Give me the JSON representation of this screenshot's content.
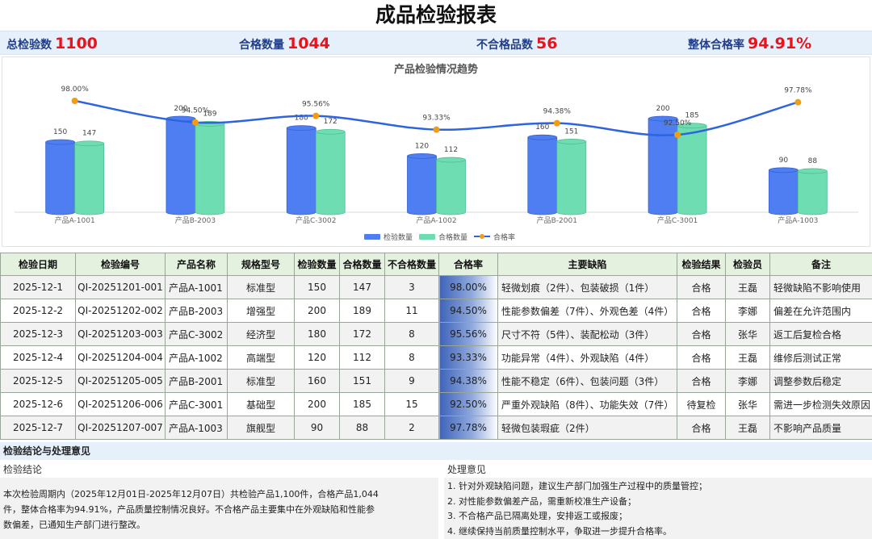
{
  "title": "成品检验报表",
  "kpis": [
    {
      "label": "总检验数",
      "value": "1100"
    },
    {
      "label": "合格数量",
      "value": "1044"
    },
    {
      "label": "不合格品数",
      "value": "56"
    },
    {
      "label": "整体合格率",
      "value": "94.91%"
    }
  ],
  "chart_data": {
    "type": "bar",
    "title": "产品检验情况趋势",
    "categories": [
      "产品A-1001",
      "产品B-2003",
      "产品C-3002",
      "产品A-1002",
      "产品B-2001",
      "产品C-3001",
      "产品A-1003"
    ],
    "series": [
      {
        "name": "检验数量",
        "kind": "bar",
        "color": "#4e7ef2",
        "values": [
          150,
          200,
          180,
          120,
          160,
          200,
          90
        ]
      },
      {
        "name": "合格数量",
        "kind": "bar",
        "color": "#6edeb2",
        "values": [
          147,
          189,
          172,
          112,
          151,
          185,
          88
        ]
      },
      {
        "name": "合格率",
        "kind": "line",
        "color": "#2e64e0",
        "marker_color": "#f39c12",
        "values": [
          98.0,
          94.5,
          95.56,
          93.33,
          94.38,
          92.5,
          97.78
        ]
      }
    ],
    "rate_labels": [
      "98.00%",
      "94.50%",
      "95.56%",
      "93.33%",
      "94.38%",
      "92.50%",
      "97.78%"
    ],
    "legend_position": "bottom",
    "grid": false
  },
  "table": {
    "headers": [
      "检验日期",
      "检验编号",
      "产品名称",
      "规格型号",
      "检验数量",
      "合格数量",
      "不合格数量",
      "合格率",
      "主要缺陷",
      "检验结果",
      "检验员",
      "备注"
    ],
    "rows": [
      [
        "2025-12-1",
        "QI-20251201-001",
        "产品A-1001",
        "标准型",
        "150",
        "147",
        "3",
        "98.00%",
        "轻微划痕（2件）、包装破损（1件）",
        "合格",
        "王磊",
        "轻微缺陷不影响使用"
      ],
      [
        "2025-12-2",
        "QI-20251202-002",
        "产品B-2003",
        "增强型",
        "200",
        "189",
        "11",
        "94.50%",
        "性能参数偏差（7件）、外观色差（4件）",
        "合格",
        "李娜",
        "偏差在允许范围内"
      ],
      [
        "2025-12-3",
        "QI-20251203-003",
        "产品C-3002",
        "经济型",
        "180",
        "172",
        "8",
        "95.56%",
        "尺寸不符（5件）、装配松动（3件）",
        "合格",
        "张华",
        "返工后复检合格"
      ],
      [
        "2025-12-4",
        "QI-20251204-004",
        "产品A-1002",
        "高端型",
        "120",
        "112",
        "8",
        "93.33%",
        "功能异常（4件）、外观缺陷（4件）",
        "合格",
        "王磊",
        "维修后测试正常"
      ],
      [
        "2025-12-5",
        "QI-20251205-005",
        "产品B-2001",
        "标准型",
        "160",
        "151",
        "9",
        "94.38%",
        "性能不稳定（6件）、包装问题（3件）",
        "合格",
        "李娜",
        "调整参数后稳定"
      ],
      [
        "2025-12-6",
        "QI-20251206-006",
        "产品C-3001",
        "基础型",
        "200",
        "185",
        "15",
        "92.50%",
        "严重外观缺陷（8件）、功能失效（7件）",
        "待复检",
        "张华",
        "需进一步检测失效原因"
      ],
      [
        "2025-12-7",
        "QI-20251207-007",
        "产品A-1003",
        "旗舰型",
        "90",
        "88",
        "2",
        "97.78%",
        "轻微包装瑕疵（2件）",
        "合格",
        "王磊",
        "不影响产品质量"
      ]
    ]
  },
  "conclusion": {
    "heading": "检验结论与处理意见",
    "left_title": "检验结论",
    "left_text": "本次检验周期内（2025年12月01日-2025年12月07日）共检验产品1,100件，合格产品1,044件，整体合格率为94.91%，产品质量控制情况良好。不合格产品主要集中在外观缺陷和性能参数偏差，已通知生产部门进行整改。",
    "right_title": "处理意见",
    "actions": [
      "1. 针对外观缺陷问题，建议生产部门加强生产过程中的质量管控；",
      "2. 对性能参数偏差产品，需重新校准生产设备；",
      "3. 不合格产品已隔离处理，安排返工或报废；",
      "4. 继续保持当前质量控制水平，争取进一步提升合格率。"
    ]
  }
}
